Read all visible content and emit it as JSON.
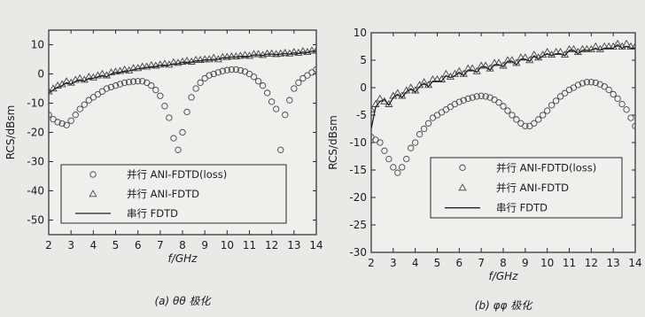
{
  "chart_data": [
    {
      "type": "line",
      "caption": "(a) θθ 极化",
      "xlabel": "f/GHz",
      "ylabel": "RCS/dBsm",
      "xlim": [
        2,
        14
      ],
      "ylim": [
        -55,
        15
      ],
      "xticks": [
        2,
        3,
        4,
        5,
        6,
        7,
        8,
        9,
        10,
        11,
        12,
        13,
        14
      ],
      "yticks": [
        10,
        0,
        -10,
        -20,
        -30,
        -40,
        -50
      ],
      "legend_position": "bottom-left",
      "series": [
        {
          "name": "并行 ANI-FDTD(loss)",
          "marker": "circle",
          "x": [
            2.0,
            2.2,
            2.4,
            2.6,
            2.8,
            3.0,
            3.2,
            3.4,
            3.6,
            3.8,
            4.0,
            4.2,
            4.4,
            4.6,
            4.8,
            5.0,
            5.2,
            5.4,
            5.6,
            5.8,
            6.0,
            6.2,
            6.4,
            6.6,
            6.8,
            7.0,
            7.2,
            7.4,
            7.6,
            7.8,
            8.0,
            8.2,
            8.4,
            8.6,
            8.8,
            9.0,
            9.2,
            9.4,
            9.6,
            9.8,
            10.0,
            10.2,
            10.4,
            10.6,
            10.8,
            11.0,
            11.2,
            11.4,
            11.6,
            11.8,
            12.0,
            12.2,
            12.4,
            12.6,
            12.8,
            13.0,
            13.2,
            13.4,
            13.6,
            13.8,
            14.0
          ],
          "values": [
            -14,
            -15.5,
            -16.5,
            -17,
            -17.5,
            -16,
            -14,
            -12,
            -10.5,
            -9,
            -8,
            -7,
            -6,
            -5,
            -4.5,
            -4,
            -3.5,
            -3,
            -2.8,
            -2.6,
            -2.5,
            -2.5,
            -3,
            -4,
            -5.5,
            -7.5,
            -11,
            -15,
            -22,
            -26,
            -20,
            -13,
            -8,
            -5,
            -3,
            -1.5,
            -0.5,
            0,
            0.5,
            1,
            1.3,
            1.5,
            1.5,
            1.2,
            0.8,
            0,
            -1,
            -2.5,
            -4,
            -6.5,
            -9.5,
            -12,
            -26,
            -14,
            -9,
            -5,
            -3,
            -1.5,
            -0.5,
            0.5,
            1.5
          ]
        },
        {
          "name": "并行 ANI-FDTD",
          "marker": "triangle",
          "x": [
            2.0,
            2.2,
            2.4,
            2.6,
            2.8,
            3.0,
            3.2,
            3.4,
            3.6,
            3.8,
            4.0,
            4.2,
            4.4,
            4.6,
            4.8,
            5.0,
            5.2,
            5.4,
            5.6,
            5.8,
            6.0,
            6.2,
            6.4,
            6.6,
            6.8,
            7.0,
            7.2,
            7.4,
            7.6,
            7.8,
            8.0,
            8.2,
            8.4,
            8.6,
            8.8,
            9.0,
            9.2,
            9.4,
            9.6,
            9.8,
            10.0,
            10.2,
            10.4,
            10.6,
            10.8,
            11.0,
            11.2,
            11.4,
            11.6,
            11.8,
            12.0,
            12.2,
            12.4,
            12.6,
            12.8,
            13.0,
            13.2,
            13.4,
            13.6,
            13.8,
            14.0
          ],
          "values": [
            -6,
            -5,
            -4,
            -3.5,
            -2.5,
            -3,
            -2,
            -1.5,
            -2,
            -1,
            -1.2,
            -0.5,
            0,
            -0.5,
            0.5,
            0.8,
            1,
            1.5,
            1.2,
            2,
            2,
            2.5,
            2.5,
            3,
            2.8,
            3.2,
            3.5,
            3.2,
            4,
            3.8,
            4.2,
            4.5,
            4.2,
            4.8,
            4.8,
            5,
            5,
            5.5,
            5,
            5.8,
            5.8,
            6,
            6,
            6.2,
            6.5,
            6.2,
            6.8,
            6.8,
            6.5,
            7,
            7,
            6.8,
            7,
            7.2,
            7,
            7.5,
            7.2,
            7.8,
            7.5,
            8,
            8
          ]
        },
        {
          "name": "串行 FDTD",
          "marker": "line",
          "x": [
            2.0,
            2.2,
            2.4,
            2.6,
            2.8,
            3.0,
            3.2,
            3.4,
            3.6,
            3.8,
            4.0,
            4.2,
            4.4,
            4.6,
            4.8,
            5.0,
            5.2,
            5.4,
            5.6,
            5.8,
            6.0,
            6.2,
            6.4,
            6.6,
            6.8,
            7.0,
            7.2,
            7.4,
            7.6,
            7.8,
            8.0,
            8.2,
            8.4,
            8.6,
            8.8,
            9.0,
            9.2,
            9.4,
            9.6,
            9.8,
            10.0,
            10.2,
            10.4,
            10.6,
            10.8,
            11.0,
            11.2,
            11.4,
            11.6,
            11.8,
            12.0,
            12.2,
            12.4,
            12.6,
            12.8,
            13.0,
            13.2,
            13.4,
            13.6,
            13.8,
            14.0
          ],
          "values": [
            -6.5,
            -5.5,
            -4.5,
            -4,
            -3,
            -3.5,
            -2.5,
            -2,
            -2.5,
            -1.5,
            -1.5,
            -1,
            -0.5,
            -1,
            0,
            0.5,
            0.5,
            1,
            1,
            1.5,
            1.8,
            2,
            2.2,
            2.5,
            2.5,
            3,
            3,
            3,
            3.5,
            3.5,
            4,
            4,
            4,
            4.5,
            4.5,
            4.8,
            4.8,
            5,
            5,
            5.5,
            5.5,
            5.8,
            5.8,
            6,
            6,
            6,
            6.5,
            6.5,
            6.3,
            6.8,
            6.8,
            6.6,
            6.8,
            7,
            6.8,
            7.2,
            7,
            7.5,
            7.3,
            7.8,
            7.8
          ]
        }
      ]
    },
    {
      "type": "line",
      "caption": "(b) φφ 极化",
      "xlabel": "f/GHz",
      "ylabel": "RCS/dBsm",
      "xlim": [
        2,
        14
      ],
      "ylim": [
        -30,
        10
      ],
      "xticks": [
        2,
        3,
        4,
        5,
        6,
        7,
        8,
        9,
        10,
        11,
        12,
        13,
        14
      ],
      "yticks": [
        10,
        5,
        0,
        -5,
        -10,
        -15,
        -20,
        -25,
        -30
      ],
      "legend_position": "bottom-left",
      "series": [
        {
          "name": "并行 ANI-FDTD(loss)",
          "marker": "circle",
          "x": [
            2.0,
            2.2,
            2.4,
            2.6,
            2.8,
            3.0,
            3.2,
            3.4,
            3.6,
            3.8,
            4.0,
            4.2,
            4.4,
            4.6,
            4.8,
            5.0,
            5.2,
            5.4,
            5.6,
            5.8,
            6.0,
            6.2,
            6.4,
            6.6,
            6.8,
            7.0,
            7.2,
            7.4,
            7.6,
            7.8,
            8.0,
            8.2,
            8.4,
            8.6,
            8.8,
            9.0,
            9.2,
            9.4,
            9.6,
            9.8,
            10.0,
            10.2,
            10.4,
            10.6,
            10.8,
            11.0,
            11.2,
            11.4,
            11.6,
            11.8,
            12.0,
            12.2,
            12.4,
            12.6,
            12.8,
            13.0,
            13.2,
            13.4,
            13.6,
            13.8,
            14.0
          ],
          "values": [
            -9,
            -9.5,
            -10,
            -11.5,
            -13,
            -14.5,
            -15.5,
            -14.5,
            -13,
            -11,
            -10,
            -8.5,
            -7.5,
            -6.5,
            -5.5,
            -5,
            -4.5,
            -4,
            -3.5,
            -3,
            -2.6,
            -2.3,
            -2,
            -1.8,
            -1.6,
            -1.5,
            -1.6,
            -1.8,
            -2.2,
            -2.7,
            -3.4,
            -4.2,
            -5,
            -5.8,
            -6.5,
            -7,
            -7,
            -6.5,
            -5.8,
            -5,
            -4.2,
            -3.2,
            -2.4,
            -1.6,
            -1,
            -0.4,
            0,
            0.5,
            0.8,
            1,
            1,
            0.9,
            0.6,
            0.2,
            -0.4,
            -1.2,
            -2,
            -3,
            -4,
            -5.5,
            -7
          ]
        },
        {
          "name": "并行 ANI-FDTD",
          "marker": "triangle",
          "x": [
            2.0,
            2.2,
            2.4,
            2.6,
            2.8,
            3.0,
            3.2,
            3.4,
            3.6,
            3.8,
            4.0,
            4.2,
            4.4,
            4.6,
            4.8,
            5.0,
            5.2,
            5.4,
            5.6,
            5.8,
            6.0,
            6.2,
            6.4,
            6.6,
            6.8,
            7.0,
            7.2,
            7.4,
            7.6,
            7.8,
            8.0,
            8.2,
            8.4,
            8.6,
            8.8,
            9.0,
            9.2,
            9.4,
            9.6,
            9.8,
            10.0,
            10.2,
            10.4,
            10.6,
            10.8,
            11.0,
            11.2,
            11.4,
            11.6,
            11.8,
            12.0,
            12.2,
            12.4,
            12.6,
            12.8,
            13.0,
            13.2,
            13.4,
            13.6,
            13.8,
            14.0
          ],
          "values": [
            -4,
            -3,
            -2,
            -2.5,
            -3,
            -1.5,
            -1,
            -1.5,
            -0.5,
            0,
            -0.5,
            0.5,
            1,
            0.5,
            1.5,
            1.5,
            1.5,
            2.5,
            2,
            2.5,
            3,
            2.5,
            3.5,
            3.5,
            3,
            4,
            4,
            3.5,
            4.5,
            4.5,
            4,
            5,
            5,
            4.5,
            5.5,
            5.5,
            5,
            6,
            5.5,
            6,
            6.5,
            6,
            6.5,
            6.5,
            6,
            7,
            7,
            6.5,
            7,
            7,
            7,
            7.5,
            7,
            7.5,
            7.5,
            7.5,
            8,
            7.5,
            8,
            7.5,
            7.5
          ]
        },
        {
          "name": "串行 FDTD",
          "marker": "line",
          "x": [
            2.0,
            2.2,
            2.4,
            2.6,
            2.8,
            3.0,
            3.2,
            3.4,
            3.6,
            3.8,
            4.0,
            4.2,
            4.4,
            4.6,
            4.8,
            5.0,
            5.2,
            5.4,
            5.6,
            5.8,
            6.0,
            6.2,
            6.4,
            6.6,
            6.8,
            7.0,
            7.2,
            7.4,
            7.6,
            7.8,
            8.0,
            8.2,
            8.4,
            8.6,
            8.8,
            9.0,
            9.2,
            9.4,
            9.6,
            9.8,
            10.0,
            10.2,
            10.4,
            10.6,
            10.8,
            11.0,
            11.2,
            11.4,
            11.6,
            11.8,
            12.0,
            12.2,
            12.4,
            12.6,
            12.8,
            13.0,
            13.2,
            13.4,
            13.6,
            13.8,
            14.0
          ],
          "values": [
            -7.5,
            -3.5,
            -2.5,
            -2.2,
            -3.2,
            -1.8,
            -1.2,
            -1.8,
            -0.8,
            -0.2,
            -0.8,
            0.2,
            0.8,
            0.2,
            1.2,
            1.2,
            1.2,
            2.2,
            1.8,
            2.2,
            2.8,
            2.2,
            3.2,
            3.2,
            2.8,
            3.8,
            3.8,
            3.2,
            4.2,
            4.2,
            3.8,
            4.8,
            4.8,
            4.2,
            5.2,
            5.2,
            4.8,
            5.8,
            5.2,
            5.8,
            6.2,
            5.8,
            6.2,
            6.2,
            5.8,
            6.8,
            6.8,
            6.2,
            6.8,
            6.8,
            6.8,
            7.2,
            6.8,
            7.2,
            7.2,
            7.2,
            7.8,
            7.2,
            7.5,
            7.2,
            7.2
          ]
        }
      ]
    }
  ]
}
